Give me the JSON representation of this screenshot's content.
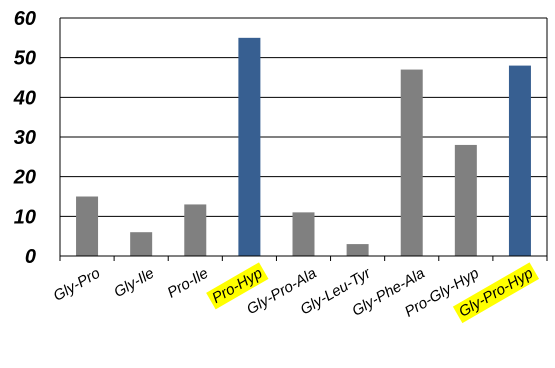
{
  "chart_data": {
    "type": "bar",
    "title": "",
    "xlabel": "",
    "ylabel": "",
    "categories": [
      "Gly-Pro",
      "Gly-Ile",
      "Pro-Ile",
      "Pro-Hyp",
      "Gly-Pro-Ala",
      "Gly-Leu-Tyr",
      "Gly-Phe-Ala",
      "Pro-Gly-Hyp",
      "Gly-Pro-Hyp"
    ],
    "values": [
      15,
      6,
      13,
      55,
      11,
      3,
      47,
      28,
      48
    ],
    "ylim": [
      0,
      60
    ],
    "yticks": [
      0,
      10,
      20,
      30,
      40,
      50,
      60
    ],
    "grid": true,
    "legend": "none",
    "highlighted_categories": [
      "Pro-Hyp",
      "Gly-Pro-Hyp"
    ],
    "colors": {
      "bar_default": "#808080",
      "bar_highlight": "#375f91",
      "label_highlight": "#ffff00",
      "grid": "#000000"
    }
  }
}
